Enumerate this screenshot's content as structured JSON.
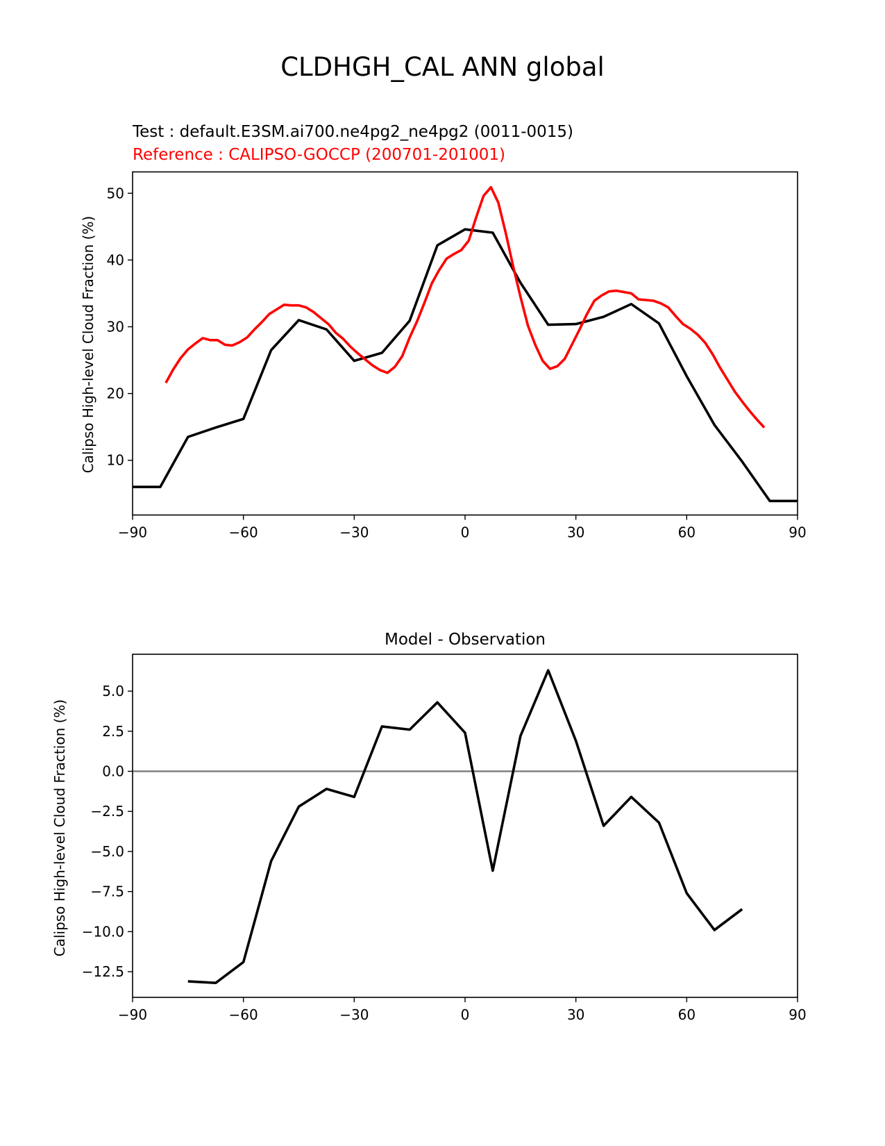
{
  "figure": {
    "title": "CLDHGH_CAL ANN global"
  },
  "colors": {
    "test": "#000000",
    "reference": "#ff0000",
    "zero_line": "#808080"
  },
  "chart_data": [
    {
      "type": "line",
      "test_label": "Test : default.E3SM.ai700.ne4pg2_ne4pg2 (0011-0015)",
      "reference_label": "Reference : CALIPSO-GOCCP (200701-201001)",
      "ylabel": "Calipso High-level Cloud Fraction (%)",
      "xlim": [
        -90,
        90
      ],
      "ylim": [
        1.8,
        53.2
      ],
      "xticks": [
        -90,
        -60,
        -30,
        0,
        30,
        60,
        90
      ],
      "xtick_labels": [
        "−90",
        "−60",
        "−30",
        "0",
        "30",
        "60",
        "90"
      ],
      "yticks": [
        10,
        20,
        30,
        40,
        50
      ],
      "ytick_labels": [
        "10",
        "20",
        "30",
        "40",
        "50"
      ],
      "series": [
        {
          "role": "test",
          "x": [
            -90,
            -82.5,
            -75,
            -67.5,
            -60,
            -52.5,
            -45,
            -37.5,
            -30,
            -22.5,
            -15,
            -7.5,
            0,
            7.5,
            15,
            22.5,
            30,
            37.5,
            45,
            52.5,
            60,
            67.5,
            75,
            82.5,
            90
          ],
          "y": [
            6.0,
            6.0,
            13.5,
            14.9,
            16.2,
            26.5,
            31.0,
            29.6,
            24.9,
            26.1,
            30.9,
            42.2,
            44.6,
            44.1,
            36.6,
            30.3,
            30.4,
            31.5,
            33.4,
            30.5,
            22.6,
            15.3,
            9.8,
            3.9,
            3.9
          ]
        },
        {
          "role": "reference",
          "x": [
            -81,
            -79,
            -77,
            -75,
            -73,
            -71,
            -69,
            -67,
            -65,
            -63,
            -61,
            -59,
            -57,
            -55,
            -53,
            -51,
            -49,
            -47,
            -45,
            -43,
            -41,
            -39,
            -37,
            -35,
            -33,
            -31,
            -29,
            -27,
            -25,
            -23,
            -21,
            -19,
            -17,
            -15,
            -13,
            -11,
            -9,
            -7,
            -5,
            -3,
            -1,
            1,
            3,
            5,
            7,
            9,
            11,
            13,
            15,
            17,
            19,
            21,
            23,
            25,
            27,
            29,
            31,
            33,
            35,
            37,
            39,
            41,
            43,
            45,
            47,
            49,
            51,
            53,
            55,
            57,
            59,
            61,
            63,
            65,
            67,
            69,
            71,
            73,
            75,
            77,
            79,
            81
          ],
          "y": [
            21.6,
            23.6,
            25.3,
            26.6,
            27.5,
            28.3,
            28.0,
            28.0,
            27.3,
            27.2,
            27.7,
            28.4,
            29.6,
            30.7,
            31.9,
            32.6,
            33.3,
            33.2,
            33.2,
            32.9,
            32.2,
            31.3,
            30.4,
            29.1,
            28.2,
            27.0,
            26.0,
            25.1,
            24.2,
            23.5,
            23.1,
            24.0,
            25.6,
            28.4,
            30.8,
            33.6,
            36.5,
            38.5,
            40.2,
            40.9,
            41.5,
            42.9,
            46.4,
            49.6,
            50.9,
            48.6,
            44.1,
            39.1,
            34.5,
            30.2,
            27.3,
            24.9,
            23.7,
            24.1,
            25.2,
            27.4,
            29.6,
            31.9,
            33.9,
            34.7,
            35.3,
            35.4,
            35.2,
            35.0,
            34.1,
            34.0,
            33.9,
            33.5,
            32.9,
            31.6,
            30.4,
            29.7,
            28.8,
            27.6,
            25.9,
            23.9,
            22.1,
            20.3,
            18.8,
            17.4,
            16.1,
            14.9
          ]
        }
      ]
    },
    {
      "type": "line",
      "title": "Model - Observation",
      "ylabel": "Calipso High-level Cloud Fraction (%)",
      "xlim": [
        -90,
        90
      ],
      "ylim": [
        -14.1,
        7.3
      ],
      "xticks": [
        -90,
        -60,
        -30,
        0,
        30,
        60,
        90
      ],
      "xtick_labels": [
        "−90",
        "−60",
        "−30",
        "0",
        "30",
        "60",
        "90"
      ],
      "yticks": [
        5.0,
        2.5,
        0.0,
        -2.5,
        -5.0,
        -7.5,
        -10.0,
        -12.5
      ],
      "ytick_labels": [
        "5.0",
        "2.5",
        "0.0",
        "−2.5",
        "−5.0",
        "−7.5",
        "−10.0",
        "−12.5"
      ],
      "zero_line": 0,
      "series": [
        {
          "role": "difference",
          "x": [
            -75,
            -67.5,
            -60,
            -52.5,
            -45,
            -37.5,
            -30,
            -22.5,
            -15,
            -7.5,
            0,
            7.5,
            15,
            22.5,
            30,
            37.5,
            45,
            52.5,
            60,
            67.5,
            75
          ],
          "y": [
            -13.1,
            -13.2,
            -11.9,
            -5.6,
            -2.2,
            -1.1,
            -1.6,
            2.8,
            2.6,
            4.3,
            2.4,
            -6.2,
            2.2,
            6.3,
            1.9,
            -3.4,
            -1.6,
            -3.2,
            -7.6,
            -9.9,
            -8.6
          ]
        }
      ]
    }
  ]
}
